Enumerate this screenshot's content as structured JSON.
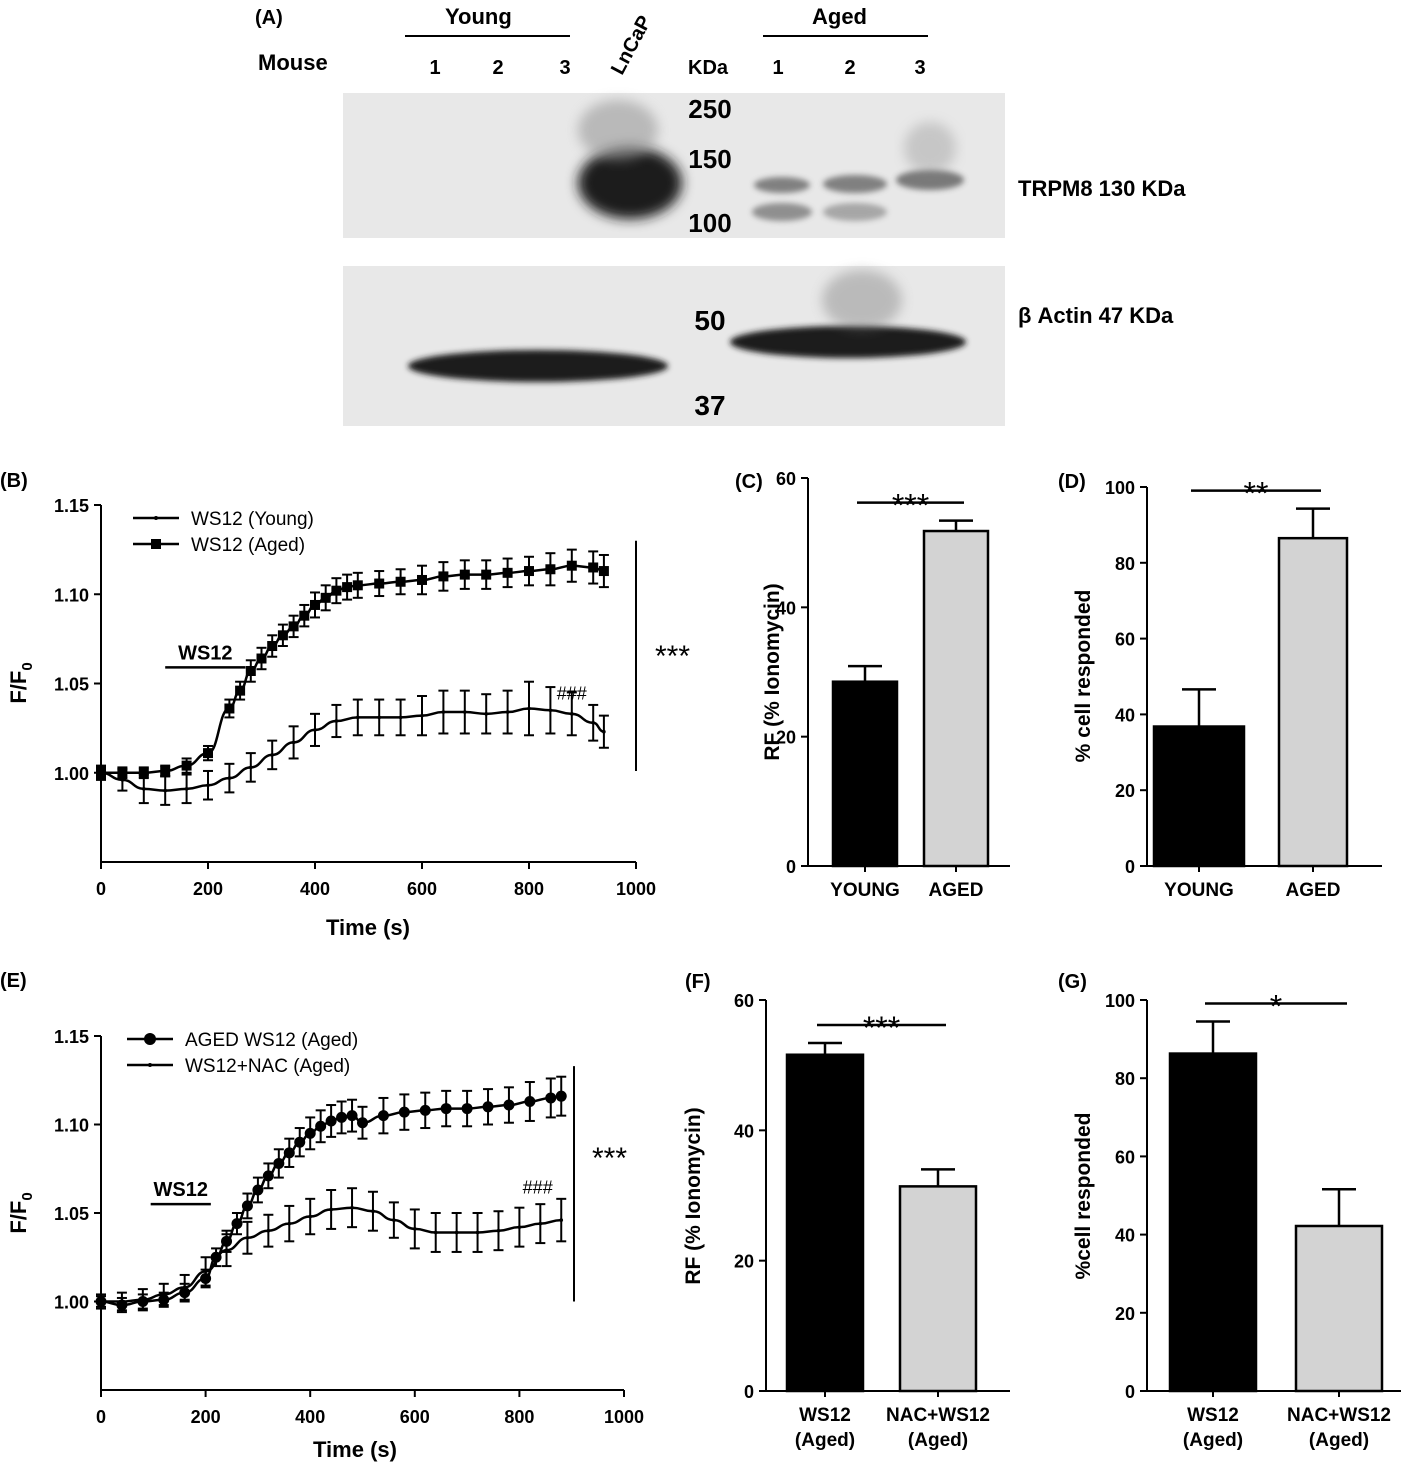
{
  "panel_a": {
    "panel_label": "(A)",
    "mouse_label": "Mouse",
    "group_young": "Young",
    "group_aged": "Aged",
    "lanes_young": [
      "1",
      "2",
      "3"
    ],
    "lane_lncap": "LnCaP",
    "kda_header": "KDa",
    "lanes_aged": [
      "1",
      "2",
      "3"
    ],
    "markers_top": [
      "250",
      "150",
      "100"
    ],
    "markers_bottom": [
      "50",
      "37"
    ],
    "band_trpm8": "TRPM8 130 KDa",
    "band_actin": "β Actin 47 KDa",
    "blot_colors": {
      "background": "#e8e8e8",
      "band": "#1a1a1a"
    }
  },
  "chart_data": [
    {
      "id": "B",
      "type": "line",
      "panel_label": "(B)",
      "ylabel": "F/F",
      "ylabel_sub": "0",
      "xlabel": "Time (s)",
      "xlim": [
        0,
        1000
      ],
      "ylim": [
        0.95,
        1.15
      ],
      "xticks": [
        "0",
        "200",
        "400",
        "600",
        "800",
        "1000"
      ],
      "yticks": [
        "1.00",
        "1.05",
        "1.10",
        "1.15"
      ],
      "grid": false,
      "legend_position": "top-left",
      "stimulus_label": "WS12",
      "stimulus_range": [
        120,
        270
      ],
      "stimulus_y": 1.059,
      "hash_text": "###",
      "hash_pos": [
        880,
        1.041
      ],
      "significance": "***",
      "significance_bar": [
        1.001,
        1.13
      ],
      "series": [
        {
          "name": "WS12 (Young)",
          "marker": "small",
          "x": [
            0,
            40,
            80,
            120,
            160,
            200,
            240,
            280,
            320,
            360,
            400,
            440,
            480,
            520,
            560,
            600,
            640,
            680,
            720,
            760,
            800,
            840,
            880,
            920,
            940
          ],
          "y": [
            1.0,
            0.996,
            0.991,
            0.99,
            0.991,
            0.993,
            0.997,
            1.003,
            1.01,
            1.017,
            1.024,
            1.029,
            1.031,
            1.031,
            1.031,
            1.032,
            1.034,
            1.034,
            1.033,
            1.034,
            1.036,
            1.035,
            1.033,
            1.028,
            1.023
          ],
          "err": [
            0.004,
            0.006,
            0.008,
            0.008,
            0.008,
            0.008,
            0.008,
            0.008,
            0.008,
            0.009,
            0.009,
            0.009,
            0.01,
            0.01,
            0.01,
            0.011,
            0.012,
            0.012,
            0.011,
            0.012,
            0.015,
            0.013,
            0.012,
            0.01,
            0.009
          ]
        },
        {
          "name": "WS12 (Aged)",
          "marker": "square",
          "x": [
            0,
            40,
            80,
            120,
            160,
            200,
            240,
            260,
            280,
            300,
            320,
            340,
            360,
            380,
            400,
            420,
            440,
            460,
            480,
            520,
            560,
            600,
            640,
            680,
            720,
            760,
            800,
            840,
            880,
            920,
            940
          ],
          "y": [
            1.0,
            1.0,
            1.0,
            1.001,
            1.004,
            1.011,
            1.036,
            1.046,
            1.057,
            1.064,
            1.071,
            1.077,
            1.082,
            1.088,
            1.094,
            1.098,
            1.102,
            1.104,
            1.105,
            1.106,
            1.107,
            1.108,
            1.11,
            1.111,
            1.111,
            1.112,
            1.113,
            1.114,
            1.116,
            1.115,
            1.113
          ],
          "err": [
            0.003,
            0.003,
            0.003,
            0.003,
            0.004,
            0.004,
            0.005,
            0.005,
            0.006,
            0.006,
            0.006,
            0.006,
            0.006,
            0.006,
            0.007,
            0.007,
            0.007,
            0.007,
            0.007,
            0.007,
            0.007,
            0.008,
            0.008,
            0.008,
            0.008,
            0.008,
            0.008,
            0.009,
            0.009,
            0.009,
            0.009
          ]
        }
      ]
    },
    {
      "id": "C",
      "type": "bar",
      "panel_label": "(C)",
      "ylabel": "RF (% Ionomycin)",
      "categories": [
        "YOUNG",
        "AGED"
      ],
      "values": [
        28.5,
        51.8
      ],
      "errors": [
        2.4,
        1.6
      ],
      "colors": [
        "#000000",
        "#d3d3d3"
      ],
      "ylim": [
        0,
        60
      ],
      "yticks": [
        "0",
        "20",
        "40",
        "60"
      ],
      "significance": "***"
    },
    {
      "id": "D",
      "type": "bar",
      "panel_label": "(D)",
      "ylabel": "% cell responded",
      "categories": [
        "YOUNG",
        "AGED"
      ],
      "values": [
        36.8,
        86.5
      ],
      "errors": [
        9.8,
        7.8
      ],
      "colors": [
        "#000000",
        "#d3d3d3"
      ],
      "ylim": [
        0,
        100
      ],
      "yticks": [
        "0",
        "20",
        "40",
        "60",
        "80",
        "100"
      ],
      "significance": "**"
    },
    {
      "id": "E",
      "type": "line",
      "panel_label": "(E)",
      "ylabel": "F/F",
      "ylabel_sub": "0",
      "xlabel": "Time (s)",
      "xlim": [
        0,
        1000
      ],
      "ylim": [
        0.95,
        1.15
      ],
      "xticks": [
        "0",
        "200",
        "400",
        "600",
        "800",
        "1000"
      ],
      "yticks": [
        "1.00",
        "1.05",
        "1.10",
        "1.15"
      ],
      "grid": false,
      "legend_position": "top-left",
      "stimulus_label": "WS12",
      "stimulus_range": [
        95,
        210
      ],
      "stimulus_y": 1.055,
      "hash_text": "###",
      "hash_pos": [
        835,
        1.061
      ],
      "significance": "***",
      "significance_bar": [
        1.0,
        1.133
      ],
      "series": [
        {
          "name": "AGED WS12 (Aged)",
          "marker": "circle",
          "x": [
            0,
            40,
            80,
            120,
            160,
            200,
            220,
            240,
            260,
            280,
            300,
            320,
            340,
            360,
            380,
            400,
            420,
            440,
            460,
            480,
            500,
            540,
            580,
            620,
            660,
            700,
            740,
            780,
            820,
            860,
            880
          ],
          "y": [
            1.0,
            0.998,
            1.0,
            1.001,
            1.005,
            1.013,
            1.025,
            1.034,
            1.044,
            1.054,
            1.063,
            1.071,
            1.078,
            1.084,
            1.09,
            1.095,
            1.099,
            1.102,
            1.104,
            1.105,
            1.101,
            1.105,
            1.107,
            1.108,
            1.109,
            1.109,
            1.11,
            1.111,
            1.113,
            1.115,
            1.116
          ],
          "err": [
            0.003,
            0.004,
            0.004,
            0.004,
            0.005,
            0.005,
            0.005,
            0.006,
            0.006,
            0.007,
            0.007,
            0.007,
            0.008,
            0.008,
            0.008,
            0.009,
            0.009,
            0.009,
            0.009,
            0.009,
            0.009,
            0.01,
            0.01,
            0.01,
            0.01,
            0.01,
            0.01,
            0.01,
            0.011,
            0.011,
            0.011
          ]
        },
        {
          "name": "WS12+NAC (Aged)",
          "marker": "small",
          "x": [
            0,
            40,
            80,
            120,
            160,
            200,
            240,
            280,
            320,
            360,
            400,
            440,
            480,
            520,
            560,
            600,
            640,
            680,
            720,
            760,
            800,
            840,
            880
          ],
          "y": [
            1.0,
            1.0,
            1.001,
            1.004,
            1.008,
            1.017,
            1.029,
            1.036,
            1.04,
            1.044,
            1.048,
            1.052,
            1.053,
            1.051,
            1.046,
            1.041,
            1.039,
            1.039,
            1.039,
            1.04,
            1.042,
            1.044,
            1.046
          ],
          "err": [
            0.004,
            0.005,
            0.006,
            0.006,
            0.007,
            0.008,
            0.009,
            0.009,
            0.009,
            0.01,
            0.01,
            0.011,
            0.011,
            0.011,
            0.01,
            0.011,
            0.011,
            0.011,
            0.011,
            0.011,
            0.011,
            0.011,
            0.012
          ]
        }
      ]
    },
    {
      "id": "F",
      "type": "bar",
      "panel_label": "(F)",
      "ylabel": "RF (% Ionomycin)",
      "categories": [
        "WS12",
        "NAC+WS12"
      ],
      "categories_sub": [
        "(Aged)",
        "(Aged)"
      ],
      "values": [
        51.6,
        31.4
      ],
      "errors": [
        1.8,
        2.6
      ],
      "colors": [
        "#000000",
        "#d3d3d3"
      ],
      "ylim": [
        0,
        60
      ],
      "yticks": [
        "0",
        "20",
        "40",
        "60"
      ],
      "significance": "***"
    },
    {
      "id": "G",
      "type": "bar",
      "panel_label": "(G)",
      "ylabel": "%cell responded",
      "categories": [
        "WS12",
        "NAC+WS12"
      ],
      "categories_sub": [
        "(Aged)",
        "(Aged)"
      ],
      "values": [
        86.3,
        42.2
      ],
      "errors": [
        8.2,
        9.4
      ],
      "colors": [
        "#000000",
        "#d3d3d3"
      ],
      "ylim": [
        0,
        100
      ],
      "yticks": [
        "0",
        "20",
        "40",
        "60",
        "80",
        "100"
      ],
      "significance": "*"
    }
  ]
}
